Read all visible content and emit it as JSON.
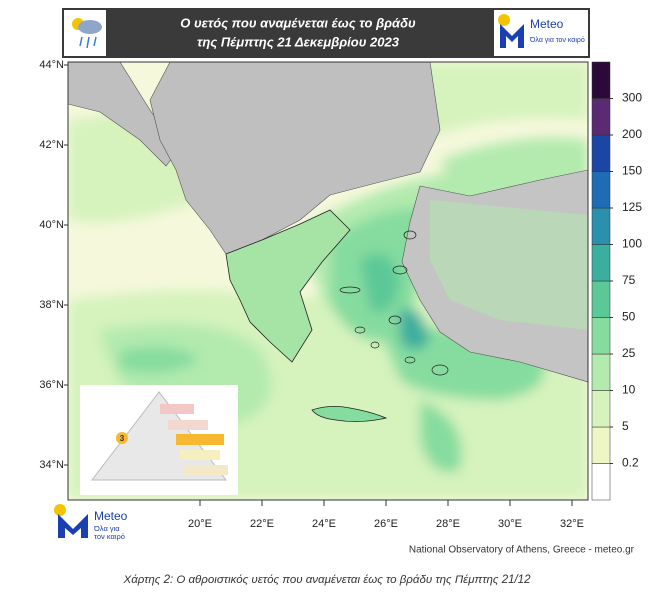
{
  "header": {
    "title_line1": "Ο υετός που αναμένεται έως το βράδυ",
    "title_line2": "της Πέμπτης 21 Δεκεμβρίου 2023",
    "logo_name": "Meteo",
    "logo_tagline": "Όλα για τον καιρό"
  },
  "map": {
    "lat_labels": [
      "44°N",
      "42°N",
      "40°N",
      "38°N",
      "36°N",
      "34°N"
    ],
    "lon_labels": [
      "20°E",
      "22°E",
      "24°E",
      "26°E",
      "28°E",
      "30°E",
      "32°E"
    ],
    "inset_level": "3"
  },
  "legend": {
    "ticks": [
      0.2,
      5,
      10,
      25,
      50,
      75,
      100,
      125,
      150,
      200,
      300
    ],
    "colors": [
      "#ffffff",
      "#eef6c4",
      "#d6f3bd",
      "#b3eaae",
      "#86dc9f",
      "#5cc898",
      "#3aae9f",
      "#2a90ae",
      "#1f6cb4",
      "#1c46a3",
      "#5a2a72",
      "#2b0a3a"
    ]
  },
  "footer": {
    "logo_name": "Meteo",
    "logo_tagline": "Όλα για τον καιρό",
    "credit": "National Observatory of Athens, Greece - meteo.gr",
    "caption": "Χάρτης 2: Ο αθροιστικός υετός που αναμένεται έως το βράδυ της Πέμπτης 21/12"
  }
}
